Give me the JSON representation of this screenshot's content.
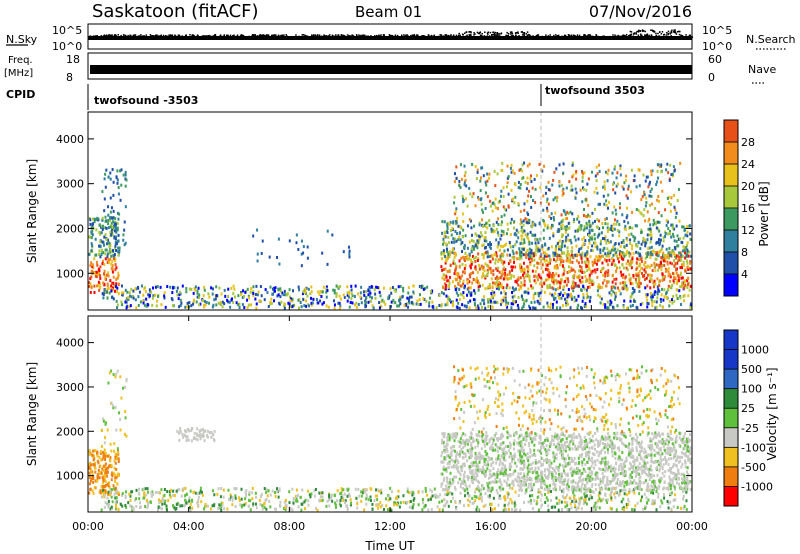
{
  "header": {
    "station": "Saskatoon (fitACF)",
    "beam": "Beam 01",
    "date": "07/Nov/2016"
  },
  "left_labels": {
    "nsky": "N.Sky",
    "freq_line1": "Freq.",
    "freq_line2": "[MHz]",
    "cpid": "CPID"
  },
  "right_labels": {
    "nsearch": "N.Search",
    "nave": "Nave"
  },
  "nsky_ticks": [
    "10^5",
    "10^0"
  ],
  "nsearch_ticks": [
    "10^5",
    "10^0"
  ],
  "freq_ticks": [
    "18",
    "8"
  ],
  "nave_ticks": [
    "60",
    "0"
  ],
  "cpid": [
    {
      "label": "twofsound -3503",
      "start_hour": 0
    },
    {
      "label": "twofsound 3503",
      "start_hour": 18
    }
  ],
  "chart_data": [
    {
      "type": "heatmap",
      "name": "power",
      "ylabel": "Slant Range [km]",
      "xlabel": "",
      "x_range_hours": [
        0,
        24
      ],
      "ylim": [
        180,
        4600
      ],
      "yticks": [
        "1000",
        "2000",
        "3000",
        "4000"
      ],
      "colorbar_label": "Power [dB]",
      "colorbar_ticks": [
        "4",
        "8",
        "12",
        "16",
        "20",
        "24",
        "28"
      ],
      "colorbar_range": [
        0,
        32
      ],
      "colors": [
        "#0000ff",
        "#1f4fa8",
        "#2f7f9f",
        "#3c9a60",
        "#a6c83a",
        "#e8c11a",
        "#f28c1c",
        "#e8501a",
        "#ff0000"
      ]
    },
    {
      "type": "heatmap",
      "name": "velocity",
      "ylabel": "Slant Range [km]",
      "xlabel": "Time UT",
      "x_range_hours": [
        0,
        24
      ],
      "ylim": [
        180,
        4600
      ],
      "yticks": [
        "1000",
        "2000",
        "3000",
        "4000"
      ],
      "colorbar_label": "Velocity [m s⁻¹]",
      "colorbar_ticks": [
        "1000",
        "500",
        "100",
        "25",
        "-25",
        "-100",
        "-500",
        "-1000"
      ],
      "colors": [
        "#1737c8",
        "#2e68c2",
        "#2e8b3a",
        "#5ec03c",
        "#c8c8c4",
        "#f0c020",
        "#f07d10",
        "#ff0000"
      ]
    }
  ],
  "x_axis": {
    "ticks": [
      "00:00",
      "04:00",
      "08:00",
      "12:00",
      "16:00",
      "20:00",
      "00:00"
    ],
    "label": "Time UT"
  }
}
